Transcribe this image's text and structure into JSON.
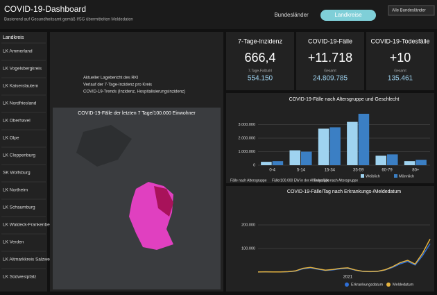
{
  "header": {
    "title": "COVID-19-Dashboard",
    "subtitle": "Basierend auf Gesundheitsamt gemäß IfSG übermittelten Meldedaten",
    "tabs": [
      "Bundesländer",
      "Landkreise"
    ],
    "select": "Alle Bundesländer"
  },
  "links": [
    "Aktueller Lagebericht des RKI",
    "Verlauf der 7-Tage-Inzidenz pro Kreis",
    "COVID-19-Trends (Inzidenz, Hospitalisierungsinzidenz)"
  ],
  "kpis": [
    {
      "title": "7-Tage-Inzidenz",
      "value": "666,4",
      "sub_label": "7-Tage-Fallzahl",
      "sub_value": "554.150"
    },
    {
      "title": "COVID-19-Fälle",
      "value": "+11.718",
      "sub_label": "Gesamt",
      "sub_value": "24.809.785"
    },
    {
      "title": "COVID-19-Todesfälle",
      "value": "+10",
      "sub_label": "Gesamt",
      "sub_value": "135.461"
    }
  ],
  "districts": {
    "title": "Landkreis",
    "items": [
      "LK Ammerland",
      "LK Vogelsbergkreis",
      "LK Kaiserslautern",
      "LK Nordfriesland",
      "LK Oberhavel",
      "LK Olpe",
      "LK Cloppenburg",
      "SK Wolfsburg",
      "LK Northeim",
      "LK Schaumburg",
      "LK Waldeck-Frankenberg",
      "LK Verden",
      "LK Altmarkkreis Salzwedel",
      "LK Südwestpfalz"
    ]
  },
  "map": {
    "title": "COVID-19-Fälle der letzten 7 Tage/100.000 Einwohner"
  },
  "chart_data": [
    {
      "type": "bar",
      "title": "COVID-19-Fälle nach Altersgruppe und Geschlecht",
      "categories": [
        "0-4",
        "5-14",
        "15-34",
        "35-59",
        "60-79",
        "80+"
      ],
      "series": [
        {
          "name": "Weiblich",
          "color": "#9fd3f0",
          "values": [
            250000,
            1100000,
            2700000,
            3200000,
            700000,
            300000
          ]
        },
        {
          "name": "Männlich",
          "color": "#3b7fc4",
          "values": [
            300000,
            1000000,
            2800000,
            3800000,
            800000,
            400000
          ]
        }
      ],
      "ylim": [
        0,
        4000000
      ],
      "yticks": [
        {
          "value": 0,
          "label": "0"
        },
        {
          "value": 1000000,
          "label": "1.000.000"
        },
        {
          "value": 2000000,
          "label": "2.000.000"
        },
        {
          "value": 3000000,
          "label": "3.000.000"
        }
      ],
      "tabs": [
        "Fälle nach Altersgruppe",
        "Fälle/100.000 EW in der Altersgruppe",
        "Todesfälle nach Altersgruppe"
      ]
    },
    {
      "type": "line",
      "title": "COVID-19-Fälle/Tag nach Erkrankungs-/Meldedatum",
      "categories": [
        null,
        null,
        null,
        null,
        null,
        null,
        null,
        null,
        null,
        null,
        null,
        null,
        "2021",
        null,
        null,
        null,
        null,
        null,
        null,
        null,
        null,
        null,
        null,
        null
      ],
      "series": [
        {
          "name": "Erkrankungsdatum",
          "color": "#2f6fd6",
          "values": [
            500,
            1000,
            800,
            600,
            1500,
            4000,
            14000,
            18000,
            12000,
            7000,
            9000,
            14000,
            16000,
            8000,
            3000,
            2000,
            3000,
            9000,
            20000,
            35000,
            45000,
            30000,
            70000,
            120000
          ]
        },
        {
          "name": "Meldedatum",
          "color": "#e6b440",
          "values": [
            600,
            1200,
            900,
            700,
            1800,
            5000,
            16000,
            20000,
            14000,
            8000,
            11000,
            16000,
            18000,
            9000,
            3500,
            2500,
            3500,
            10000,
            23000,
            40000,
            50000,
            34000,
            80000,
            140000
          ]
        }
      ],
      "ylim": [
        0,
        300000
      ],
      "yticks": [
        {
          "value": 100000,
          "label": "100.000"
        },
        {
          "value": 200000,
          "label": "200.000"
        }
      ]
    }
  ]
}
